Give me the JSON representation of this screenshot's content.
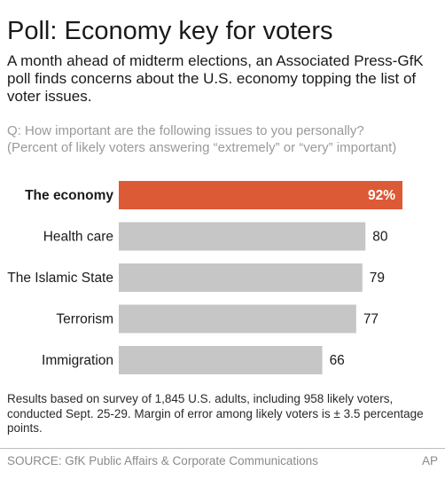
{
  "header": {
    "title": "Poll: Economy key for voters",
    "subtitle": "A month ahead of midterm elections, an Associated Press-GfK poll finds concerns about the U.S. economy topping the list of voter issues."
  },
  "question": {
    "line1": "Q: How important are the following issues to you personally?",
    "line2": "(Percent of likely voters answering “extremely” or “very” important)"
  },
  "chart_data": {
    "type": "bar",
    "orientation": "horizontal",
    "categories": [
      "The economy",
      "Health care",
      "The Islamic State",
      "Terrorism",
      "Immigration"
    ],
    "values": [
      92,
      80,
      79,
      77,
      66
    ],
    "value_labels": [
      "92%",
      "80",
      "79",
      "77",
      "66"
    ],
    "highlight_index": 0,
    "xlim": [
      0,
      92
    ],
    "grid": false,
    "colors": {
      "highlight": "#dc5a36",
      "default": "#c6c6c6",
      "highlight_label": "#ffffff",
      "default_label": "#1a1a1a"
    }
  },
  "footer": {
    "notes": "Results based on survey of 1,845 U.S. adults, including 958 likely voters, conducted Sept. 25-29. Margin of error among likely voters is ± 3.5 percentage points.",
    "source": "SOURCE: GfK Public Affairs & Corporate Communications",
    "credit": "AP"
  }
}
